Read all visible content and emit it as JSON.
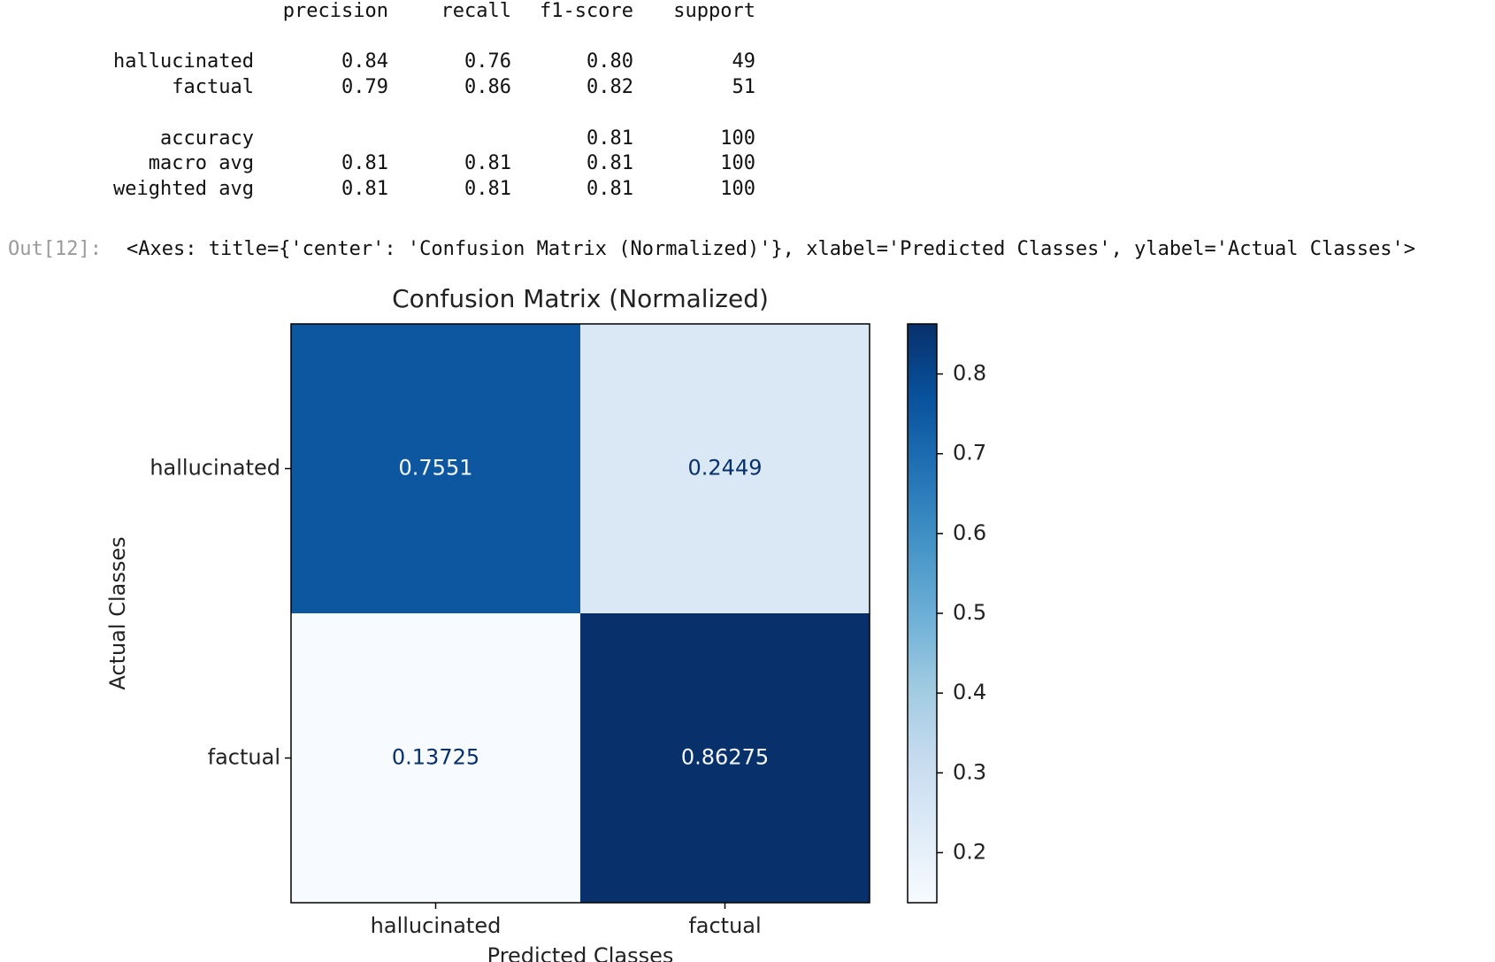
{
  "report": {
    "header": [
      "precision",
      "recall",
      "f1-score",
      "support"
    ],
    "rows": [
      {
        "label": "hallucinated",
        "cells": [
          "0.84",
          "0.76",
          "0.80",
          "49"
        ]
      },
      {
        "label": "factual",
        "cells": [
          "0.79",
          "0.86",
          "0.82",
          "51"
        ]
      },
      {
        "label": "accuracy",
        "cells": [
          null,
          null,
          "0.81",
          "100"
        ]
      },
      {
        "label": "macro avg",
        "cells": [
          "0.81",
          "0.81",
          "0.81",
          "100"
        ]
      },
      {
        "label": "weighted avg",
        "cells": [
          "0.81",
          "0.81",
          "0.81",
          "100"
        ]
      }
    ]
  },
  "output": {
    "prompt": "Out[12]:",
    "text": "<Axes: title={'center': 'Confusion Matrix (Normalized)'}, xlabel='Predicted Classes', ylabel='Actual Classes'>"
  },
  "chart_data": {
    "type": "heatmap",
    "title": "Confusion Matrix (Normalized)",
    "x_label": "Predicted Classes",
    "y_label": "Actual Classes",
    "x_categories": [
      "hallucinated",
      "factual"
    ],
    "y_categories": [
      "hallucinated",
      "factual"
    ],
    "values": [
      [
        0.7551,
        0.2449
      ],
      [
        0.13725,
        0.86275
      ]
    ],
    "colormap": "Blues",
    "zlim": [
      0.13725,
      0.86275
    ],
    "zticks": [
      0.2,
      0.3,
      0.4,
      0.5,
      0.6,
      0.7,
      0.8
    ]
  }
}
